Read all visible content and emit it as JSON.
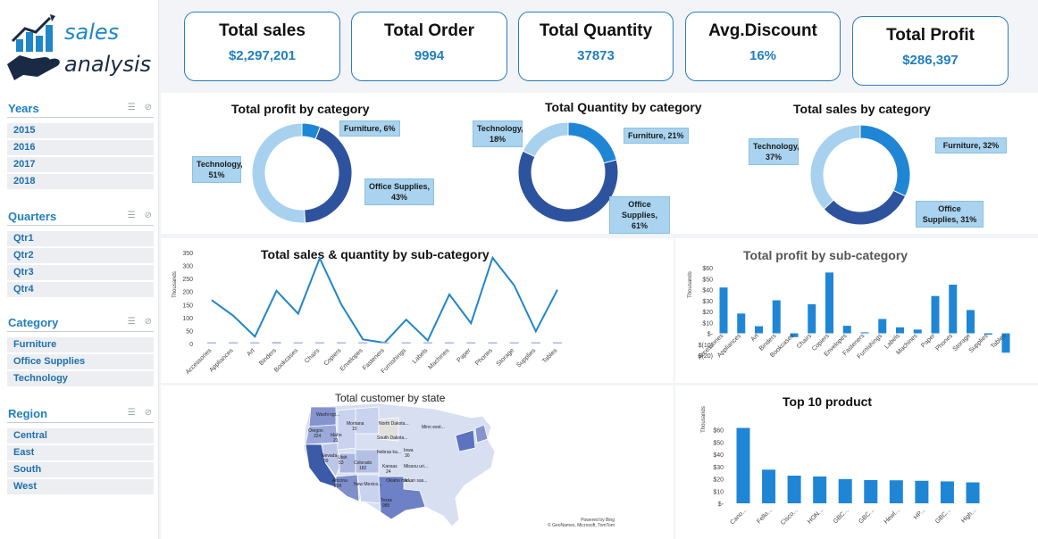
{
  "logo": {
    "line1": "sales",
    "line2": "analysis"
  },
  "slicers": [
    {
      "title": "Years",
      "items": [
        "2015",
        "2016",
        "2017",
        "2018"
      ]
    },
    {
      "title": "Quarters",
      "items": [
        "Qtr1",
        "Qtr2",
        "Qtr3",
        "Qtr4"
      ]
    },
    {
      "title": "Category",
      "items": [
        "Furniture",
        "Office Supplies",
        "Technology"
      ]
    },
    {
      "title": "Region",
      "items": [
        "Central",
        "East",
        "South",
        "West"
      ]
    }
  ],
  "kpis": [
    {
      "label": "Total sales",
      "value": "$2,297,201"
    },
    {
      "label": "Total Order",
      "value": "9994"
    },
    {
      "label": "Total Quantity",
      "value": "37873"
    },
    {
      "label": "Avg.Discount",
      "value": "16%"
    },
    {
      "label": "Total Profit",
      "value": "$286,397"
    }
  ],
  "colors": {
    "furniture": "#1f86d6",
    "office": "#2e539e",
    "technology": "#a8d1ef",
    "line": "#1f86c8",
    "bar": "#1f86d6",
    "accent": "#1f7fc1"
  },
  "chart_data": [
    {
      "type": "pie",
      "title": "Total profit by category",
      "slices": [
        {
          "name": "Furniture",
          "value": 6,
          "label": "Furniture, 6%"
        },
        {
          "name": "Office Supplies",
          "value": 43,
          "label": "Office Supplies, 43%"
        },
        {
          "name": "Technology",
          "value": 51,
          "label": "Technology, 51%"
        }
      ]
    },
    {
      "type": "pie",
      "title": "Total Quantity by category",
      "slices": [
        {
          "name": "Furniture",
          "value": 21,
          "label": "Furniture, 21%"
        },
        {
          "name": "Office Supplies",
          "value": 61,
          "label": "Office Supplies, 61%"
        },
        {
          "name": "Technology",
          "value": 18,
          "label": "Technology, 18%"
        }
      ]
    },
    {
      "type": "pie",
      "title": "Total sales by category",
      "slices": [
        {
          "name": "Furniture",
          "value": 32,
          "label": "Furniture, 32%"
        },
        {
          "name": "Office Supplies",
          "value": 31,
          "label": "Office Supplies, 31%"
        },
        {
          "name": "Technology",
          "value": 37,
          "label": "Technology, 37%"
        }
      ]
    },
    {
      "type": "line",
      "title": "Total sales & quantity by sub-category",
      "ylabel": "Thousands",
      "ylim": [
        0,
        350
      ],
      "yticks": [
        "0",
        "50",
        "100",
        "150",
        "200",
        "250",
        "300",
        "350"
      ],
      "categories": [
        "Accessories",
        "Appliances",
        "Art",
        "Binders",
        "Bookcases",
        "Chairs",
        "Copiers",
        "Envelopes",
        "Fasteners",
        "Furnishings",
        "Labels",
        "Machines",
        "Paper",
        "Phones",
        "Storage",
        "Supplies",
        "Tables"
      ],
      "series": [
        {
          "values": [
            167,
            107,
            27,
            203,
            115,
            328,
            150,
            16,
            3,
            92,
            12,
            189,
            78,
            330,
            224,
            47,
            207
          ]
        },
        {
          "values": [
            3,
            2,
            3,
            6,
            1,
            2,
            0.2,
            1,
            1,
            3,
            1,
            0.4,
            5,
            3,
            3,
            0.6,
            1.2
          ]
        }
      ]
    },
    {
      "type": "bar",
      "title": "Total profit by sub-category",
      "ylabel": "Thousands",
      "ylim": [
        -20,
        60
      ],
      "yticks": [
        "$60",
        "$50",
        "$40",
        "$30",
        "$20",
        "$10",
        "$-",
        "$(10)",
        "$(20)"
      ],
      "categories": [
        "Accessories",
        "Appliances",
        "Art",
        "Binders",
        "Bookcases",
        "Chairs",
        "Copiers",
        "Envelopes",
        "Fasteners",
        "Furnishings",
        "Labels",
        "Machines",
        "Paper",
        "Phones",
        "Storage",
        "Supplies",
        "Tables"
      ],
      "values": [
        41.9,
        18.1,
        6.5,
        30.2,
        -3.5,
        26.6,
        55.6,
        6.9,
        0.9,
        13.1,
        5.5,
        3.4,
        34.1,
        44.5,
        21.3,
        -1.2,
        -17.7
      ]
    },
    {
      "type": "map",
      "title": "Total customer by state",
      "attribution": [
        "Powered by Bing",
        "© GeoNames, Microsoft, TomTom"
      ],
      "states": [
        {
          "name": "Washi ngt...",
          "value": ""
        },
        {
          "name": "Oregon",
          "value": "324"
        },
        {
          "name": "Idaho",
          "value": "21"
        },
        {
          "name": "Montana",
          "value": "15"
        },
        {
          "name": "North Dakota...",
          "value": ""
        },
        {
          "name": "South Dakota...",
          "value": ""
        },
        {
          "name": "Minn esot...",
          "value": ""
        },
        {
          "name": "Nevada",
          "value": "39"
        },
        {
          "name": "Utah",
          "value": "53"
        },
        {
          "name": "Colorado",
          "value": "182"
        },
        {
          "name": "Nebras ka...",
          "value": ""
        },
        {
          "name": "Iowa",
          "value": "30"
        },
        {
          "name": "Kansas",
          "value": "24"
        },
        {
          "name": "Missou uri...",
          "value": ""
        },
        {
          "name": "Arizona",
          "value": "224"
        },
        {
          "name": "New Mexico...",
          "value": ""
        },
        {
          "name": "Oklaho ma...",
          "value": ""
        },
        {
          "name": "Arkan sas...",
          "value": ""
        },
        {
          "name": "Texas",
          "value": "985"
        }
      ]
    },
    {
      "type": "bar",
      "title": "Top 10 product",
      "ylabel": "Thousands",
      "ylim": [
        0,
        70
      ],
      "yticks": [
        "$60",
        "$50",
        "$40",
        "$30",
        "$20",
        "$10",
        "$-"
      ],
      "categories": [
        "Cano...",
        "Fello...",
        "Cisco...",
        "HON...",
        "GBC...",
        "GBC...",
        "Hewl...",
        "HP...",
        "GBC...",
        "High..."
      ],
      "values": [
        61.6,
        27.5,
        22.6,
        21.9,
        19.8,
        19.0,
        18.8,
        18.4,
        17.9,
        17.1
      ]
    }
  ]
}
